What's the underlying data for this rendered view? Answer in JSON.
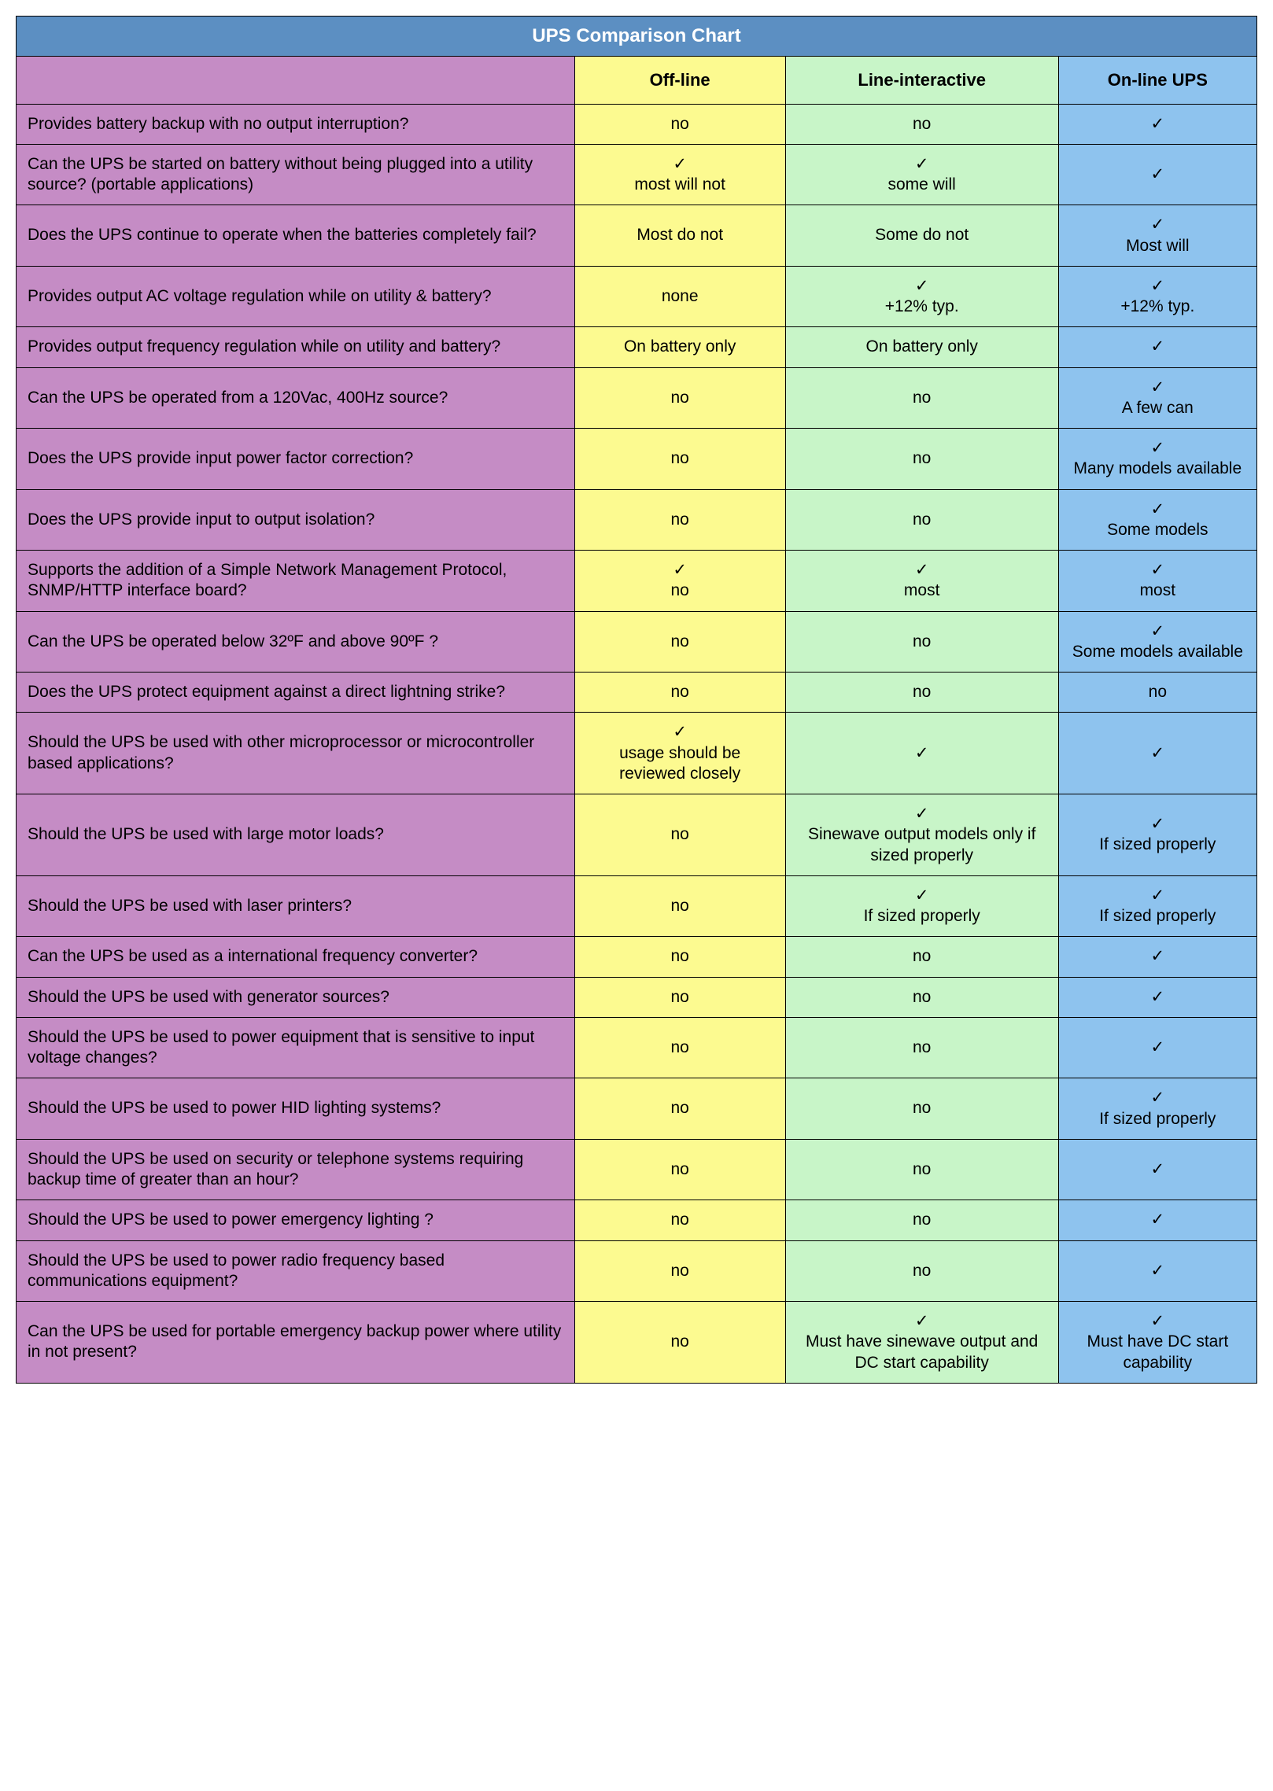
{
  "title": "UPS Comparison Chart",
  "colors": {
    "title_bg": "#5c8fc2",
    "title_fg": "#ffffff",
    "label_bg": "#c58cc5",
    "col_bgs": [
      "#fcfa90",
      "#c8f5c8",
      "#8ec3ee"
    ],
    "border": "#000000",
    "text": "#000000"
  },
  "typography": {
    "base_font": "Helvetica, Arial, sans-serif",
    "title_fontsize_pt": 18,
    "header_fontsize_pt": 16,
    "body_fontsize_pt": 15
  },
  "layout": {
    "col_widths_pct": [
      45,
      17,
      22,
      16
    ]
  },
  "columns": [
    "Off-line",
    "Line-interactive",
    "On-line UPS"
  ],
  "check_glyph": "✓",
  "rows": [
    {
      "label": "Provides battery backup with no output interruption?",
      "cells": [
        {
          "check": false,
          "text": "no"
        },
        {
          "check": false,
          "text": "no"
        },
        {
          "check": true,
          "text": ""
        }
      ]
    },
    {
      "label": "Can the UPS be started on battery without being plugged into a utility source? (portable applications)",
      "cells": [
        {
          "check": true,
          "text": "most will not"
        },
        {
          "check": true,
          "text": "some will"
        },
        {
          "check": true,
          "text": ""
        }
      ]
    },
    {
      "label": "Does the UPS continue to operate when the batteries completely fail?",
      "cells": [
        {
          "check": false,
          "text": "Most do not"
        },
        {
          "check": false,
          "text": "Some do not"
        },
        {
          "check": true,
          "text": "Most will"
        }
      ]
    },
    {
      "label": "Provides output AC voltage regulation while on utility & battery?",
      "cells": [
        {
          "check": false,
          "text": "none"
        },
        {
          "check": true,
          "text": "+12% typ."
        },
        {
          "check": true,
          "text": "+12% typ."
        }
      ]
    },
    {
      "label": "Provides output frequency regulation while on utility and battery?",
      "cells": [
        {
          "check": false,
          "text": "On battery only"
        },
        {
          "check": false,
          "text": "On battery only"
        },
        {
          "check": true,
          "text": ""
        }
      ]
    },
    {
      "label": "Can the UPS be operated from a 120Vac, 400Hz source?",
      "cells": [
        {
          "check": false,
          "text": "no"
        },
        {
          "check": false,
          "text": "no"
        },
        {
          "check": true,
          "text": "A few can"
        }
      ]
    },
    {
      "label": "Does the UPS provide input power factor correction?",
      "cells": [
        {
          "check": false,
          "text": "no"
        },
        {
          "check": false,
          "text": "no"
        },
        {
          "check": true,
          "text": "Many models available"
        }
      ]
    },
    {
      "label": "Does the UPS provide input to output isolation?",
      "cells": [
        {
          "check": false,
          "text": "no"
        },
        {
          "check": false,
          "text": "no"
        },
        {
          "check": true,
          "text": "Some models"
        }
      ]
    },
    {
      "label": "Supports the addition of a Simple Network Management Protocol, SNMP/HTTP interface board?",
      "cells": [
        {
          "check": true,
          "text": "no"
        },
        {
          "check": true,
          "text": "most"
        },
        {
          "check": true,
          "text": "most"
        }
      ]
    },
    {
      "label": "Can the UPS be operated below 32ºF and above 90ºF ?",
      "cells": [
        {
          "check": false,
          "text": "no"
        },
        {
          "check": false,
          "text": "no"
        },
        {
          "check": true,
          "text": "Some models available"
        }
      ]
    },
    {
      "label": "Does the UPS protect equipment against a direct lightning strike?",
      "cells": [
        {
          "check": false,
          "text": "no"
        },
        {
          "check": false,
          "text": "no"
        },
        {
          "check": false,
          "text": "no"
        }
      ]
    },
    {
      "label": "Should the UPS be used with other microprocessor or microcontroller based applications?",
      "cells": [
        {
          "check": true,
          "text": "usage should be reviewed closely"
        },
        {
          "check": true,
          "text": ""
        },
        {
          "check": true,
          "text": ""
        }
      ]
    },
    {
      "label": "Should the UPS be used with large motor loads?",
      "cells": [
        {
          "check": false,
          "text": "no"
        },
        {
          "check": true,
          "text": "Sinewave output models only if sized properly"
        },
        {
          "check": true,
          "text": "If sized properly"
        }
      ]
    },
    {
      "label": "Should the UPS be used with laser printers?",
      "cells": [
        {
          "check": false,
          "text": "no"
        },
        {
          "check": true,
          "text": "If sized properly"
        },
        {
          "check": true,
          "text": "If sized properly"
        }
      ]
    },
    {
      "label": "Can the UPS be used as a international frequency converter?",
      "cells": [
        {
          "check": false,
          "text": "no"
        },
        {
          "check": false,
          "text": "no"
        },
        {
          "check": true,
          "text": ""
        }
      ]
    },
    {
      "label": "Should the UPS be used with generator sources?",
      "cells": [
        {
          "check": false,
          "text": "no"
        },
        {
          "check": false,
          "text": "no"
        },
        {
          "check": true,
          "text": ""
        }
      ]
    },
    {
      "label": "Should the UPS be used to power equipment that is sensitive to input voltage changes?",
      "cells": [
        {
          "check": false,
          "text": "no"
        },
        {
          "check": false,
          "text": "no"
        },
        {
          "check": true,
          "text": ""
        }
      ]
    },
    {
      "label": "Should the UPS be used to power HID lighting systems?",
      "cells": [
        {
          "check": false,
          "text": "no"
        },
        {
          "check": false,
          "text": "no"
        },
        {
          "check": true,
          "text": "If sized properly"
        }
      ]
    },
    {
      "label": "Should the UPS be used on security or telephone systems requiring backup time of greater than an hour?",
      "cells": [
        {
          "check": false,
          "text": "no"
        },
        {
          "check": false,
          "text": "no"
        },
        {
          "check": true,
          "text": ""
        }
      ]
    },
    {
      "label": "Should the UPS be used to power emergency lighting ?",
      "cells": [
        {
          "check": false,
          "text": "no"
        },
        {
          "check": false,
          "text": "no"
        },
        {
          "check": true,
          "text": ""
        }
      ]
    },
    {
      "label": "Should the UPS be used to power radio frequency based communications equipment?",
      "cells": [
        {
          "check": false,
          "text": "no"
        },
        {
          "check": false,
          "text": "no"
        },
        {
          "check": true,
          "text": ""
        }
      ]
    },
    {
      "label": "Can the UPS be used for portable emergency backup power where utility in not present?",
      "cells": [
        {
          "check": false,
          "text": "no"
        },
        {
          "check": true,
          "text": "Must have sinewave output and DC start capability"
        },
        {
          "check": true,
          "text": "Must have DC start capability"
        }
      ]
    }
  ]
}
